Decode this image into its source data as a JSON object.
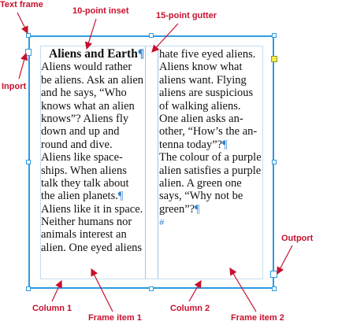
{
  "labels": {
    "text_frame": "Text frame",
    "inset": "10-point inset",
    "gutter": "15-point gutter",
    "inport": "Inport",
    "outport": "Outport",
    "column1": "Column 1",
    "frame_item1": "Frame item 1",
    "column2": "Column 2",
    "frame_item2": "Frame item 2"
  },
  "column1_lines": [
    "Aliens and Earth¶",
    "Aliens would rather",
    "be aliens. Ask an alien",
    "and he says, “Who",
    "knows what an alien",
    "knows”? Aliens fly",
    "down and up and",
    "round and dive.",
    "Aliens like space-",
    "ships. When aliens",
    "talk they talk about",
    "the alien planets.¶",
    "Aliens like it in space.",
    "Neither humans nor",
    "animals interest an",
    "alien. One eyed aliens"
  ],
  "column2_lines": [
    "hate five eyed aliens.",
    "Aliens know what",
    "aliens want. Flying",
    "aliens are suspicious",
    "of walking aliens.",
    "One alien asks an-",
    "other, “How’s the an-",
    "tenna today”?¶",
    "The colour of a purple",
    "alien satisfies a purple",
    "alien. A green one",
    "says, “Why not be",
    "green”?¶",
    "#"
  ],
  "colors": {
    "frame": "#2d9be0",
    "callout": "#c8102e",
    "handle_yellow": "#f4e94a"
  }
}
